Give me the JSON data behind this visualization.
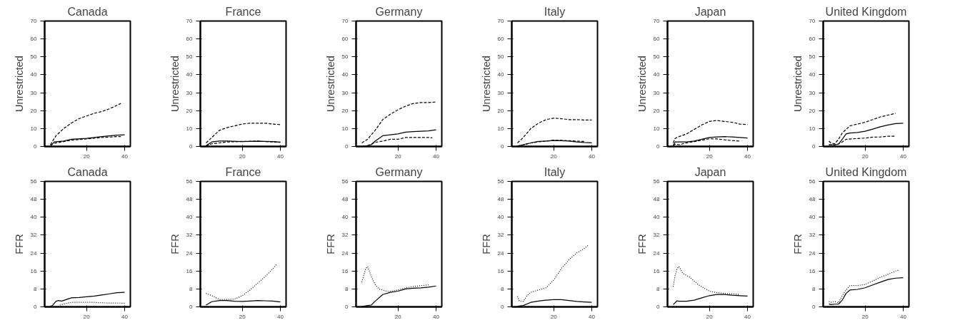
{
  "chart_data": [
    {
      "type": "line",
      "title": "Canada",
      "ylabel": "Unrestricted",
      "xlim": [
        -2,
        43
      ],
      "xticks": [
        20,
        40
      ],
      "ylim": [
        0,
        70
      ],
      "yticks": [
        0,
        10,
        20,
        30,
        40,
        50,
        60,
        70
      ],
      "series": [
        {
          "color": "#000000",
          "line_style": "solid",
          "x": [
            1,
            3,
            8,
            12,
            20,
            28,
            36,
            40
          ],
          "values": [
            0,
            2.5,
            3,
            4,
            4.5,
            5.5,
            6.3,
            6.5
          ]
        },
        {
          "color": "#000000",
          "line_style": "dashed",
          "x": [
            1,
            4,
            8,
            12,
            16,
            20,
            24,
            28,
            32,
            36,
            38
          ],
          "values": [
            1,
            6,
            10,
            13,
            15.5,
            17,
            18.5,
            19.5,
            21,
            23,
            24
          ]
        },
        {
          "color": "#000000",
          "line_style": "dashed",
          "x": [
            1,
            4,
            12,
            20,
            28,
            36,
            38
          ],
          "values": [
            1,
            2,
            3.5,
            4.2,
            5,
            5.5,
            5.5
          ]
        }
      ]
    },
    {
      "type": "line",
      "title": "France",
      "ylabel": "Unrestricted",
      "xlim": [
        -2,
        43
      ],
      "xticks": [
        20,
        40
      ],
      "ylim": [
        0,
        70
      ],
      "yticks": [
        0,
        10,
        20,
        30,
        40,
        50,
        60,
        70
      ],
      "series": [
        {
          "color": "#000000",
          "line_style": "solid",
          "x": [
            1,
            4,
            8,
            12,
            20,
            28,
            36,
            40
          ],
          "values": [
            0.5,
            2.5,
            3,
            3,
            2.7,
            2.9,
            2.7,
            2.4
          ]
        },
        {
          "color": "#000000",
          "line_style": "dashed",
          "x": [
            1,
            4,
            8,
            12,
            16,
            20,
            24,
            28,
            32,
            36,
            40
          ],
          "values": [
            2,
            5,
            9,
            10.5,
            11.5,
            12.5,
            13,
            13,
            13,
            12.5,
            12.2
          ]
        },
        {
          "color": "#000000",
          "line_style": "dashed",
          "x": [
            1,
            4,
            8,
            12,
            20,
            28,
            36,
            40
          ],
          "values": [
            0.3,
            1.5,
            2,
            2.5,
            2.8,
            3,
            2.5,
            2.3
          ]
        }
      ]
    },
    {
      "type": "line",
      "title": "Germany",
      "ylabel": "Unrestricted",
      "xlim": [
        -2,
        43
      ],
      "xticks": [
        20,
        40
      ],
      "ylim": [
        0,
        70
      ],
      "yticks": [
        0,
        10,
        20,
        30,
        40,
        50,
        60,
        70
      ],
      "series": [
        {
          "color": "#000000",
          "line_style": "solid",
          "x": [
            1,
            4,
            6,
            8,
            12,
            16,
            20,
            24,
            28,
            32,
            36,
            40
          ],
          "values": [
            0,
            0.5,
            1,
            3,
            6,
            6.5,
            7,
            8,
            8.3,
            8.5,
            8.7,
            9.3
          ]
        },
        {
          "color": "#000000",
          "line_style": "dashed",
          "x": [
            1,
            4,
            8,
            12,
            16,
            20,
            24,
            28,
            32,
            36,
            40
          ],
          "values": [
            2,
            4,
            9,
            15,
            18,
            20.5,
            22.5,
            24,
            24.5,
            24.5,
            24.8
          ]
        },
        {
          "color": "#000000",
          "line_style": "dashed",
          "x": [
            4,
            8,
            12,
            16,
            20,
            24,
            28,
            32,
            36,
            38
          ],
          "values": [
            0.5,
            2.3,
            3,
            4,
            4,
            5,
            5,
            5,
            5,
            4.8
          ]
        }
      ]
    },
    {
      "type": "line",
      "title": "Italy",
      "ylabel": "Unrestricted",
      "xlim": [
        -2,
        43
      ],
      "xticks": [
        20,
        40
      ],
      "ylim": [
        0,
        70
      ],
      "yticks": [
        0,
        10,
        20,
        30,
        40,
        50,
        60,
        70
      ],
      "series": [
        {
          "color": "#000000",
          "line_style": "solid",
          "x": [
            1,
            4,
            8,
            12,
            16,
            20,
            24,
            28,
            32,
            36,
            40
          ],
          "values": [
            0.3,
            1,
            2,
            2.8,
            3,
            3.3,
            3.2,
            3,
            2.5,
            2.2,
            2
          ]
        },
        {
          "color": "#000000",
          "line_style": "dashed",
          "x": [
            1,
            4,
            8,
            12,
            16,
            20,
            24,
            28,
            32,
            36,
            40
          ],
          "values": [
            2,
            5,
            10,
            13,
            15,
            15.8,
            15.5,
            15,
            15,
            14.8,
            14.8
          ]
        },
        {
          "color": "#000000",
          "line_style": "dashed",
          "x": [
            1,
            4,
            8,
            12,
            16,
            20,
            24,
            28,
            32,
            36
          ],
          "values": [
            0.3,
            0.8,
            2,
            2.6,
            3,
            3.5,
            3.4,
            3.2,
            3,
            2.8
          ]
        }
      ]
    },
    {
      "type": "line",
      "title": "Japan",
      "ylabel": "Unrestricted",
      "xlim": [
        -2,
        43
      ],
      "xticks": [
        20,
        40
      ],
      "ylim": [
        0,
        70
      ],
      "yticks": [
        0,
        10,
        20,
        30,
        40,
        50,
        60,
        70
      ],
      "series": [
        {
          "color": "#000000",
          "line_style": "solid",
          "x": [
            1,
            2,
            4,
            8,
            12,
            16,
            20,
            24,
            28,
            32,
            36,
            40
          ],
          "values": [
            0.5,
            2.5,
            2.5,
            2.5,
            3,
            4,
            5,
            5.3,
            5.5,
            5.3,
            5,
            4.7
          ]
        },
        {
          "color": "#000000",
          "line_style": "dashed",
          "x": [
            1,
            2,
            4,
            8,
            12,
            16,
            20,
            24,
            28,
            32,
            36,
            40
          ],
          "values": [
            2,
            4.5,
            5.5,
            7,
            9.5,
            12,
            14,
            14.5,
            14,
            13.5,
            12.5,
            12.2
          ]
        },
        {
          "color": "#000000",
          "line_style": "dashed",
          "x": [
            1,
            2,
            4,
            8,
            12,
            16,
            20,
            24,
            28,
            32,
            36
          ],
          "values": [
            0.5,
            1.3,
            1,
            2,
            2.7,
            3.5,
            4.3,
            4.2,
            3.7,
            3.3,
            3
          ]
        }
      ]
    },
    {
      "type": "line",
      "title": "United Kingdom",
      "ylabel": "Unrestricted",
      "xlim": [
        -2,
        43
      ],
      "xticks": [
        20,
        40
      ],
      "ylim": [
        0,
        70
      ],
      "yticks": [
        0,
        10,
        20,
        30,
        40,
        50,
        60,
        70
      ],
      "series": [
        {
          "color": "#000000",
          "line_style": "solid",
          "x": [
            1,
            4,
            6,
            8,
            10,
            12,
            16,
            20,
            24,
            28,
            32,
            36,
            40
          ],
          "values": [
            1,
            1,
            1.2,
            4,
            7,
            7.5,
            7.8,
            8.5,
            9.7,
            11,
            12,
            12.8,
            13
          ]
        },
        {
          "color": "#000000",
          "line_style": "dashed",
          "x": [
            1,
            2,
            4,
            6,
            8,
            12,
            16,
            20,
            24,
            28,
            32,
            36
          ],
          "values": [
            3,
            2,
            1.5,
            4,
            7.5,
            11.5,
            12.5,
            13.5,
            15,
            16.5,
            17.5,
            18.5
          ]
        },
        {
          "color": "#000000",
          "line_style": "dashed",
          "x": [
            1,
            4,
            6,
            8,
            10,
            14,
            20,
            24,
            28,
            32,
            36
          ],
          "values": [
            1,
            0.8,
            1.5,
            2.5,
            4,
            4.3,
            4.7,
            5.2,
            5.3,
            5.7,
            5.7
          ]
        }
      ]
    },
    {
      "type": "line",
      "title": "Canada",
      "ylabel": "FFR",
      "xlim": [
        -2,
        43
      ],
      "xticks": [
        20,
        40
      ],
      "ylim": [
        0,
        56
      ],
      "yticks": [
        0,
        8,
        16,
        24,
        32,
        40,
        48,
        56
      ],
      "series": [
        {
          "color": "#000000",
          "line_style": "solid",
          "x": [
            1,
            2,
            4,
            5,
            7,
            12,
            16,
            20,
            24,
            28,
            32,
            36,
            40
          ],
          "values": [
            0.3,
            0.5,
            2.5,
            2.8,
            2.6,
            4,
            4.2,
            4.5,
            4.8,
            5.3,
            5.8,
            6.3,
            6.5
          ]
        },
        {
          "color": "#000000",
          "line_style": "dotted",
          "x": [
            6,
            8,
            12,
            16,
            20,
            24,
            28,
            32,
            36,
            40
          ],
          "values": [
            0.8,
            1.3,
            2,
            2,
            2,
            2,
            1.8,
            1.7,
            1.7,
            1.6
          ]
        }
      ]
    },
    {
      "type": "line",
      "title": "France",
      "ylabel": "FFR",
      "xlim": [
        -2,
        43
      ],
      "xticks": [
        20,
        40
      ],
      "ylim": [
        0,
        56
      ],
      "yticks": [
        0,
        8,
        16,
        24,
        32,
        40,
        48,
        56
      ],
      "series": [
        {
          "color": "#000000",
          "line_style": "solid",
          "x": [
            1,
            4,
            8,
            12,
            16,
            20,
            24,
            28,
            32,
            36,
            40
          ],
          "values": [
            0.8,
            2.3,
            2.8,
            2.8,
            2.5,
            2.4,
            2.6,
            2.8,
            2.7,
            2.6,
            2.2
          ]
        },
        {
          "color": "#000000",
          "line_style": "dotted",
          "x": [
            1,
            4,
            8,
            12,
            16,
            20,
            24,
            28,
            32,
            36,
            38
          ],
          "values": [
            6,
            5,
            3.3,
            3.3,
            3.5,
            5,
            7.5,
            10.5,
            13.5,
            17,
            19
          ]
        }
      ]
    },
    {
      "type": "line",
      "title": "Germany",
      "ylabel": "FFR",
      "xlim": [
        -2,
        43
      ],
      "xticks": [
        20,
        40
      ],
      "ylim": [
        0,
        56
      ],
      "yticks": [
        0,
        8,
        16,
        24,
        32,
        40,
        48,
        56
      ],
      "series": [
        {
          "color": "#000000",
          "line_style": "solid",
          "x": [
            1,
            4,
            6,
            8,
            12,
            16,
            20,
            24,
            28,
            32,
            36,
            40
          ],
          "values": [
            0.1,
            0.6,
            0.8,
            2.5,
            5.5,
            6.5,
            7,
            8,
            8.3,
            8.5,
            8.8,
            9.3
          ]
        },
        {
          "color": "#000000",
          "line_style": "dotted",
          "x": [
            1,
            2,
            3,
            4,
            5,
            6,
            8,
            10,
            14,
            16,
            20,
            24,
            28,
            32,
            36
          ],
          "values": [
            11,
            14,
            17,
            18,
            16,
            13.5,
            10,
            8,
            7,
            7,
            7.5,
            8.5,
            9,
            9.5,
            9.8
          ]
        }
      ]
    },
    {
      "type": "line",
      "title": "Italy",
      "ylabel": "FFR",
      "xlim": [
        -2,
        43
      ],
      "xticks": [
        20,
        40
      ],
      "ylim": [
        0,
        56
      ],
      "yticks": [
        0,
        8,
        16,
        24,
        32,
        40,
        48,
        56
      ],
      "series": [
        {
          "color": "#000000",
          "line_style": "solid",
          "x": [
            1,
            4,
            8,
            12,
            16,
            20,
            24,
            28,
            32,
            36,
            40
          ],
          "values": [
            0.3,
            0.6,
            2,
            2.6,
            3,
            3.2,
            3.2,
            2.8,
            2.4,
            2.2,
            2
          ]
        },
        {
          "color": "#000000",
          "line_style": "dotted",
          "x": [
            1,
            2,
            4,
            6,
            8,
            12,
            16,
            20,
            24,
            28,
            32,
            36,
            38
          ],
          "values": [
            4.7,
            2.5,
            2.4,
            5,
            6.5,
            7.5,
            8.5,
            12,
            17,
            21,
            24,
            26,
            27.5
          ]
        }
      ]
    },
    {
      "type": "line",
      "title": "Japan",
      "ylabel": "FFR",
      "xlim": [
        -2,
        43
      ],
      "xticks": [
        20,
        40
      ],
      "ylim": [
        0,
        56
      ],
      "yticks": [
        0,
        8,
        16,
        24,
        32,
        40,
        48,
        56
      ],
      "series": [
        {
          "color": "#000000",
          "line_style": "solid",
          "x": [
            1,
            3,
            4,
            8,
            12,
            16,
            20,
            24,
            28,
            32,
            36,
            40
          ],
          "values": [
            1,
            2.7,
            2.5,
            2.5,
            3,
            4,
            5,
            5.5,
            5.5,
            5.2,
            5,
            4.8
          ]
        },
        {
          "color": "#000000",
          "line_style": "dotted",
          "x": [
            1,
            2,
            3,
            4,
            6,
            10,
            14,
            18,
            20,
            24,
            28,
            32,
            36
          ],
          "values": [
            9,
            14,
            17,
            18,
            15,
            13,
            10,
            8,
            7,
            6.3,
            6,
            5.8,
            5.5
          ]
        }
      ]
    },
    {
      "type": "line",
      "title": "United Kingdom",
      "ylabel": "FFR",
      "xlim": [
        -2,
        43
      ],
      "xticks": [
        20,
        40
      ],
      "ylim": [
        0,
        56
      ],
      "yticks": [
        0,
        8,
        16,
        24,
        32,
        40,
        48,
        56
      ],
      "series": [
        {
          "color": "#000000",
          "line_style": "solid",
          "x": [
            1,
            2,
            4,
            6,
            8,
            10,
            12,
            16,
            20,
            24,
            28,
            32,
            36,
            40
          ],
          "values": [
            1.3,
            1,
            1.2,
            1.2,
            3,
            6,
            7.5,
            7.8,
            8.5,
            9.8,
            11,
            12.2,
            12.8,
            13
          ]
        },
        {
          "color": "#000000",
          "line_style": "dotted",
          "x": [
            1,
            2,
            4,
            6,
            8,
            10,
            12,
            16,
            20,
            24,
            28,
            32,
            36,
            38
          ],
          "values": [
            2.3,
            2,
            2.4,
            1.8,
            5,
            7.5,
            9.5,
            9.5,
            10,
            11.5,
            13.2,
            14.5,
            16,
            16.5
          ]
        }
      ]
    }
  ]
}
